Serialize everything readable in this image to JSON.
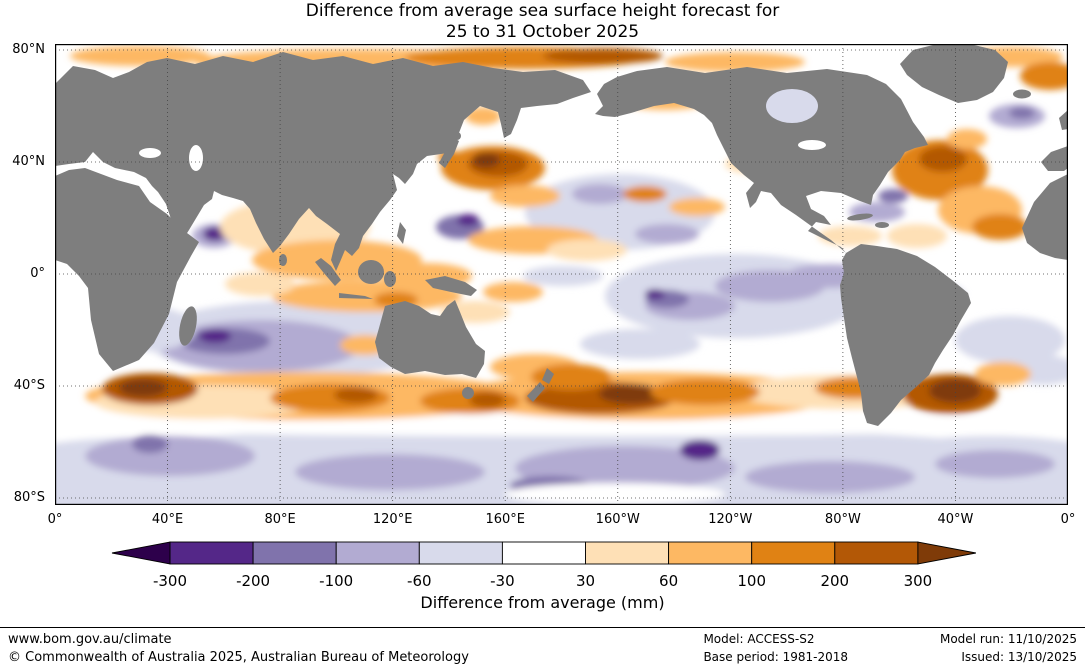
{
  "title": {
    "line1": "Difference from average sea surface height forecast for",
    "line2": "25 to 31 October 2025"
  },
  "map": {
    "lat_ticks": [
      {
        "value": 80,
        "label": "80°N"
      },
      {
        "value": 40,
        "label": "40°N"
      },
      {
        "value": 0,
        "label": "0°"
      },
      {
        "value": -40,
        "label": "40°S"
      },
      {
        "value": -80,
        "label": "80°S"
      }
    ],
    "lon_ticks": [
      {
        "value": 0,
        "label": "0°"
      },
      {
        "value": 40,
        "label": "40°E"
      },
      {
        "value": 80,
        "label": "80°E"
      },
      {
        "value": 120,
        "label": "120°E"
      },
      {
        "value": 160,
        "label": "160°E"
      },
      {
        "value": 200,
        "label": "160°W"
      },
      {
        "value": 240,
        "label": "120°W"
      },
      {
        "value": 280,
        "label": "80°W"
      },
      {
        "value": 320,
        "label": "40°W"
      },
      {
        "value": 360,
        "label": "0°"
      }
    ]
  },
  "colorbar": {
    "levels": [
      "-300",
      "-200",
      "-100",
      "-60",
      "-30",
      "30",
      "60",
      "100",
      "200",
      "300"
    ],
    "segment_colors": [
      "#542788",
      "#8073ac",
      "#b2abd2",
      "#d8daeb",
      "#ffffff",
      "#fee0b6",
      "#fdb863",
      "#e08214",
      "#b35806"
    ],
    "arrow_low_color": "#2d004b",
    "arrow_high_color": "#7f3b08",
    "caption": "Difference from average (mm)"
  },
  "footer": {
    "url": "www.bom.gov.au/climate",
    "copyright": "© Commonwealth of Australia 2025, Australian Bureau of Meteorology",
    "model": "Model: ACCESS-S2",
    "base_period": "Base period: 1981-2018",
    "model_run": "Model run: 11/10/2025",
    "issued": "Issued: 13/10/2025"
  },
  "chart_data": {
    "type": "heatmap",
    "title": "Difference from average sea surface height forecast for 25 to 31 October 2025",
    "variable": "sea surface height anomaly",
    "units": "mm",
    "colorbar_label": "Difference from average (mm)",
    "levels": [
      -300,
      -200,
      -100,
      -60,
      -30,
      30,
      60,
      100,
      200,
      300
    ],
    "model": "ACCESS-S2",
    "base_period": "1981-2018",
    "model_run": "11/10/2025",
    "issued": "13/10/2025",
    "projection": "equirectangular, Pacific-centered, lon 0°E to 360°E",
    "lat_range": [
      -82,
      82
    ],
    "lon_range": [
      0,
      360
    ],
    "gridline_step_deg": 40,
    "grid": true,
    "land_color": "#7e7e7e",
    "palette": {
      "p4": "#2d004b",
      "p3": "#542788",
      "p2": "#8073ac",
      "p1": "#b2abd2",
      "p0": "#d8daeb",
      "w": "#ffffff",
      "o0": "#fee0b6",
      "o1": "#fdb863",
      "o2": "#e08214",
      "o3": "#b35806",
      "o4": "#7f3b08"
    },
    "anomaly_regions_note": "approximate anomaly blobs [cx,cy,rx,ry,palette_key] in map pixels (1013x461); positives (orange) = higher than average, negatives (purple) = lower",
    "anomaly_regions": [
      [
        506,
        428,
        560,
        46,
        "p0"
      ],
      [
        80,
        432,
        160,
        38,
        "p0"
      ],
      [
        935,
        430,
        150,
        38,
        "p0"
      ],
      [
        506,
        381,
        540,
        11,
        "w"
      ],
      [
        115,
        412,
        85,
        20,
        "p1"
      ],
      [
        335,
        428,
        95,
        18,
        "p1"
      ],
      [
        570,
        424,
        110,
        22,
        "p1"
      ],
      [
        775,
        433,
        85,
        16,
        "p1"
      ],
      [
        940,
        420,
        60,
        14,
        "p1"
      ],
      [
        95,
        400,
        18,
        9,
        "p2"
      ],
      [
        495,
        442,
        40,
        10,
        "p2"
      ],
      [
        645,
        406,
        20,
        10,
        "p3"
      ],
      [
        560,
        450,
        110,
        11,
        "w"
      ],
      [
        240,
        295,
        150,
        38,
        "p0"
      ],
      [
        205,
        302,
        100,
        26,
        "p1"
      ],
      [
        170,
        297,
        45,
        13,
        "p2"
      ],
      [
        160,
        292,
        16,
        7,
        "p3"
      ],
      [
        95,
        285,
        45,
        22,
        "p0"
      ],
      [
        680,
        252,
        130,
        42,
        "p0"
      ],
      [
        715,
        242,
        55,
        16,
        "p1"
      ],
      [
        635,
        262,
        45,
        14,
        "p1"
      ],
      [
        612,
        255,
        22,
        9,
        "p2"
      ],
      [
        600,
        250,
        10,
        5,
        "p3"
      ],
      [
        775,
        232,
        45,
        12,
        "p1"
      ],
      [
        585,
        300,
        60,
        15,
        "p0"
      ],
      [
        820,
        260,
        40,
        12,
        "p0"
      ],
      [
        565,
        168,
        95,
        38,
        "p0"
      ],
      [
        545,
        150,
        28,
        10,
        "p1"
      ],
      [
        612,
        190,
        32,
        10,
        "p1"
      ],
      [
        405,
        183,
        24,
        12,
        "p2"
      ],
      [
        413,
        176,
        11,
        6,
        "p3"
      ],
      [
        508,
        232,
        40,
        10,
        "p0"
      ],
      [
        822,
        168,
        28,
        10,
        "p1"
      ],
      [
        838,
        152,
        15,
        7,
        "p2"
      ],
      [
        962,
        72,
        28,
        12,
        "p1"
      ],
      [
        967,
        69,
        13,
        6,
        "p2"
      ],
      [
        955,
        296,
        55,
        24,
        "p0"
      ],
      [
        988,
        326,
        34,
        15,
        "p0"
      ],
      [
        875,
        250,
        35,
        12,
        "p0"
      ],
      [
        159,
        192,
        22,
        12,
        "p1"
      ],
      [
        160,
        190,
        12,
        7,
        "p3"
      ],
      [
        300,
        18,
        160,
        13,
        "o1"
      ],
      [
        470,
        14,
        120,
        11,
        "o2"
      ],
      [
        548,
        12,
        60,
        8,
        "o3"
      ],
      [
        680,
        18,
        70,
        10,
        "o1"
      ],
      [
        85,
        12,
        70,
        10,
        "o1"
      ],
      [
        958,
        13,
        50,
        10,
        "o1"
      ],
      [
        995,
        32,
        30,
        14,
        "o2"
      ],
      [
        905,
        28,
        35,
        10,
        "o1"
      ],
      [
        438,
        124,
        52,
        22,
        "o2"
      ],
      [
        443,
        120,
        30,
        13,
        "o3"
      ],
      [
        431,
        116,
        14,
        8,
        "o4"
      ],
      [
        394,
        113,
        11,
        7,
        "o2"
      ],
      [
        428,
        72,
        18,
        9,
        "o1"
      ],
      [
        470,
        152,
        35,
        11,
        "o1"
      ],
      [
        478,
        196,
        65,
        14,
        "o1"
      ],
      [
        532,
        206,
        40,
        11,
        "o0"
      ],
      [
        590,
        150,
        22,
        8,
        "o2"
      ],
      [
        642,
        163,
        28,
        9,
        "o1"
      ],
      [
        610,
        56,
        45,
        10,
        "o1"
      ],
      [
        700,
        120,
        30,
        10,
        "o0"
      ],
      [
        240,
        183,
        75,
        28,
        "o0"
      ],
      [
        282,
        216,
        85,
        20,
        "o1"
      ],
      [
        312,
        252,
        95,
        16,
        "o1"
      ],
      [
        341,
        256,
        22,
        8,
        "o2"
      ],
      [
        372,
        232,
        45,
        13,
        "o1"
      ],
      [
        420,
        268,
        35,
        11,
        "o0"
      ],
      [
        310,
        301,
        25,
        10,
        "o1"
      ],
      [
        458,
        248,
        30,
        10,
        "o1"
      ],
      [
        205,
        240,
        35,
        12,
        "o0"
      ],
      [
        250,
        352,
        220,
        24,
        "o1"
      ],
      [
        590,
        352,
        190,
        24,
        "o1"
      ],
      [
        790,
        348,
        110,
        17,
        "o0"
      ],
      [
        150,
        358,
        110,
        17,
        "o0"
      ],
      [
        95,
        345,
        48,
        16,
        "o3"
      ],
      [
        88,
        344,
        24,
        9,
        "o4"
      ],
      [
        275,
        354,
        60,
        14,
        "o2"
      ],
      [
        301,
        351,
        22,
        8,
        "o3"
      ],
      [
        415,
        357,
        50,
        13,
        "o2"
      ],
      [
        432,
        356,
        18,
        8,
        "o3"
      ],
      [
        545,
        354,
        75,
        16,
        "o3"
      ],
      [
        576,
        350,
        32,
        10,
        "o4"
      ],
      [
        650,
        348,
        55,
        13,
        "o2"
      ],
      [
        800,
        344,
        40,
        11,
        "o2"
      ],
      [
        895,
        350,
        48,
        20,
        "o3"
      ],
      [
        900,
        347,
        26,
        12,
        "o4"
      ],
      [
        948,
        330,
        28,
        12,
        "o1"
      ],
      [
        480,
        323,
        45,
        13,
        "o1"
      ],
      [
        516,
        333,
        40,
        13,
        "o2"
      ],
      [
        885,
        126,
        48,
        30,
        "o2"
      ],
      [
        888,
        115,
        24,
        13,
        "o3"
      ],
      [
        925,
        166,
        42,
        24,
        "o1"
      ],
      [
        945,
        183,
        28,
        13,
        "o2"
      ],
      [
        862,
        192,
        30,
        12,
        "o0"
      ],
      [
        795,
        192,
        32,
        10,
        "o0"
      ],
      [
        912,
        95,
        20,
        10,
        "o1"
      ]
    ]
  }
}
